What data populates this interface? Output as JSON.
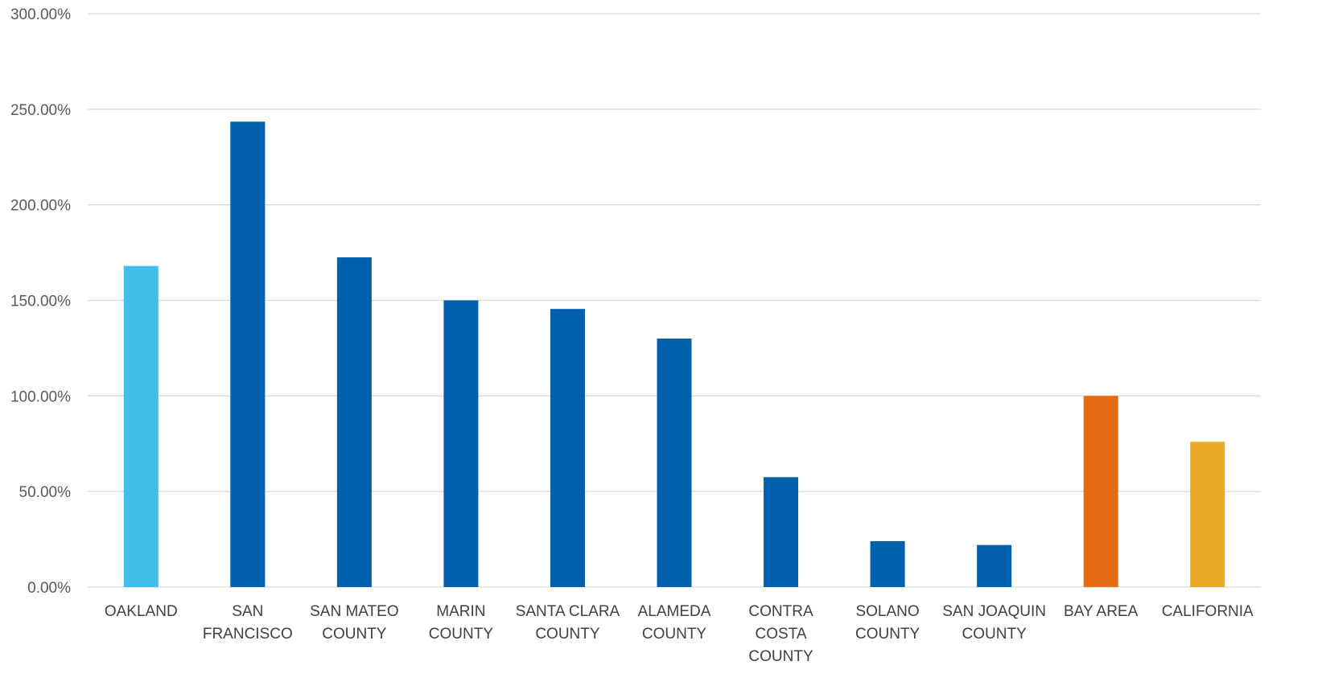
{
  "chart_data": {
    "type": "bar",
    "title": "",
    "xlabel": "",
    "ylabel": "",
    "ylim": [
      0,
      300
    ],
    "yticks": [
      "0.00%",
      "50.00%",
      "100.00%",
      "150.00%",
      "200.00%",
      "250.00%",
      "300.00%"
    ],
    "y_tick_values": [
      0,
      50,
      100,
      150,
      200,
      250,
      300
    ],
    "grid": true,
    "legend": "none",
    "categories": [
      [
        "OAKLAND"
      ],
      [
        "SAN",
        "FRANCISCO"
      ],
      [
        "SAN MATEO",
        "COUNTY"
      ],
      [
        "MARIN",
        "COUNTY"
      ],
      [
        "SANTA CLARA",
        "COUNTY"
      ],
      [
        "ALAMEDA",
        "COUNTY"
      ],
      [
        "CONTRA",
        "COSTA",
        "COUNTY"
      ],
      [
        "SOLANO",
        "COUNTY"
      ],
      [
        "SAN JOAQUIN",
        "COUNTY"
      ],
      [
        "BAY AREA"
      ],
      [
        "CALIFORNIA"
      ]
    ],
    "values": [
      168,
      243.5,
      172.5,
      150,
      145.5,
      130,
      57.5,
      24,
      22,
      100,
      76
    ],
    "colors": [
      "#41BDEA",
      "#0060AE",
      "#0060AE",
      "#0060AE",
      "#0060AE",
      "#0060AE",
      "#0060AE",
      "#0060AE",
      "#0060AE",
      "#E66A12",
      "#EBAA26"
    ]
  }
}
